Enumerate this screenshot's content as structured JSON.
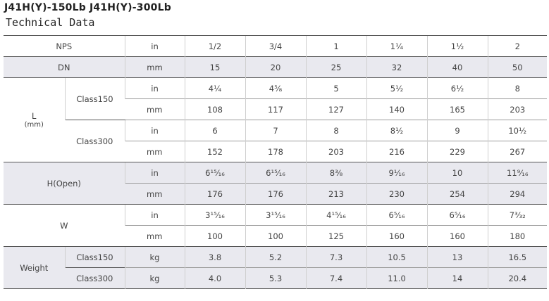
{
  "header": {
    "title": "J41H(Y)-150Lb J41H(Y)-300Lb",
    "subtitle": "Technical Data"
  },
  "table": {
    "groups": [
      {
        "label": "NPS",
        "rows": [
          {
            "unit": "in",
            "values": [
              "1/2",
              "3/4",
              "1",
              "1¹⁄₄",
              "1¹⁄₂",
              "2"
            ]
          }
        ]
      },
      {
        "label": "DN",
        "shaded": true,
        "rows": [
          {
            "unit": "mm",
            "values": [
              "15",
              "20",
              "25",
              "32",
              "40",
              "50"
            ]
          }
        ]
      },
      {
        "label": "L",
        "note": "(mm)",
        "subgroups": [
          {
            "label": "Class150",
            "rows": [
              {
                "unit": "in",
                "values": [
                  "4¹⁄₄",
                  "4⁵⁄₈",
                  "5",
                  "5¹⁄₂",
                  "6¹⁄₂",
                  "8"
                ]
              },
              {
                "unit": "mm",
                "values": [
                  "108",
                  "117",
                  "127",
                  "140",
                  "165",
                  "203"
                ]
              }
            ]
          },
          {
            "label": "Class300",
            "rows": [
              {
                "unit": "in",
                "values": [
                  "6",
                  "7",
                  "8",
                  "8¹⁄₂",
                  "9",
                  "10¹⁄₂"
                ]
              },
              {
                "unit": "mm",
                "values": [
                  "152",
                  "178",
                  "203",
                  "216",
                  "229",
                  "267"
                ]
              }
            ]
          }
        ]
      },
      {
        "label": "H(Open)",
        "shaded": true,
        "rows": [
          {
            "unit": "in",
            "values": [
              "6¹⁵⁄₁₆",
              "6¹⁵⁄₁₆",
              "8³⁄₈",
              "9¹⁄₁₆",
              "10",
              "11⁹⁄₁₆"
            ]
          },
          {
            "unit": "mm",
            "values": [
              "176",
              "176",
              "213",
              "230",
              "254",
              "294"
            ]
          }
        ]
      },
      {
        "label": "W",
        "rows": [
          {
            "unit": "in",
            "values": [
              "3¹⁵⁄₁₆",
              "3¹⁵⁄₁₆",
              "4¹⁵⁄₁₆",
              "6⁵⁄₁₆",
              "6⁵⁄₁₆",
              "7³⁄₃₂"
            ]
          },
          {
            "unit": "mm",
            "values": [
              "100",
              "100",
              "125",
              "160",
              "160",
              "180"
            ]
          }
        ]
      },
      {
        "label": "Weight",
        "shaded": true,
        "subgroups": [
          {
            "label": "Class150",
            "rows": [
              {
                "unit": "kg",
                "values": [
                  "3.8",
                  "5.2",
                  "7.3",
                  "10.5",
                  "13",
                  "16.5"
                ]
              }
            ]
          },
          {
            "label": "Class300",
            "rows": [
              {
                "unit": "kg",
                "values": [
                  "4.0",
                  "5.3",
                  "7.4",
                  "11.0",
                  "14",
                  "20.4"
                ]
              }
            ]
          }
        ]
      }
    ]
  }
}
